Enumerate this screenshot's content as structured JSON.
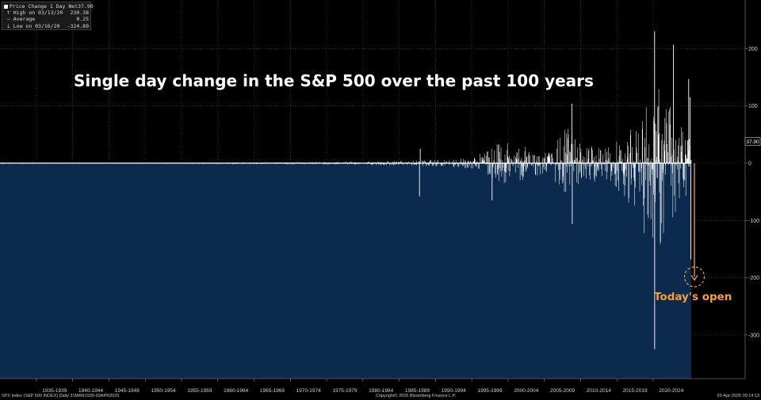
{
  "chart_data": {
    "type": "bar",
    "title": "Single day change in the S&P 500 over the past 100 years",
    "xlabel": "",
    "ylabel": "",
    "x_categories": [
      "1935-1939",
      "1940-1944",
      "1945-1949",
      "1950-1954",
      "1955-1959",
      "1960-1964",
      "1965-1969",
      "1970-1974",
      "1975-1979",
      "1980-1984",
      "1985-1989",
      "1990-1994",
      "1995-1999",
      "2000-2004",
      "2005-2009",
      "2010-2014",
      "2015-2019",
      "2020-2024"
    ],
    "y_ticks": [
      200,
      100,
      0,
      -100,
      -200,
      -300
    ],
    "ylim": [
      -345,
      240
    ],
    "grid": true,
    "series": [
      {
        "name": "Price Change 1 Day Net",
        "envelope": [
          {
            "year": 1930.2,
            "hi": 1.5,
            "lo": -1.5
          },
          {
            "year": 1940,
            "hi": 0.6,
            "lo": -0.6
          },
          {
            "year": 1950,
            "hi": 0.8,
            "lo": -0.8
          },
          {
            "year": 1960,
            "hi": 1.5,
            "lo": -2
          },
          {
            "year": 1970,
            "hi": 2,
            "lo": -2
          },
          {
            "year": 1980,
            "hi": 3,
            "lo": -3
          },
          {
            "year": 1985,
            "hi": 4,
            "lo": -4
          },
          {
            "year": 1990,
            "hi": 6,
            "lo": -6
          },
          {
            "year": 1995,
            "hi": 10,
            "lo": -10
          },
          {
            "year": 1998,
            "hi": 30,
            "lo": -30
          },
          {
            "year": 2000,
            "hi": 45,
            "lo": -40
          },
          {
            "year": 2003,
            "hi": 25,
            "lo": -25
          },
          {
            "year": 2006,
            "hi": 20,
            "lo": -20
          },
          {
            "year": 2008,
            "hi": 70,
            "lo": -70
          },
          {
            "year": 2010,
            "hi": 35,
            "lo": -35
          },
          {
            "year": 2014,
            "hi": 30,
            "lo": -30
          },
          {
            "year": 2018,
            "hi": 70,
            "lo": -90
          },
          {
            "year": 2020,
            "hi": 150,
            "lo": -180
          },
          {
            "year": 2022,
            "hi": 110,
            "lo": -120
          },
          {
            "year": 2024,
            "hi": 80,
            "lo": -80
          },
          {
            "year": 2025.25,
            "hi": 40,
            "lo": -200
          }
        ],
        "spikes": [
          {
            "year": 1987.8,
            "value": -58
          },
          {
            "year": 1987.9,
            "value": 25
          },
          {
            "year": 1997.8,
            "value": -65
          },
          {
            "year": 2008.8,
            "value": 104
          },
          {
            "year": 2008.85,
            "value": -106
          },
          {
            "year": 2020.2,
            "value": 230.38
          },
          {
            "year": 2020.21,
            "value": -324.89
          },
          {
            "year": 2022.8,
            "value": 207
          },
          {
            "year": 2024.9,
            "value": 147
          },
          {
            "year": 2025.1,
            "value": 115
          },
          {
            "year": 2025.2,
            "value": -168
          }
        ]
      }
    ],
    "last_value": 37.9,
    "todays_open": -204,
    "annotation": "Today's open"
  },
  "legend": {
    "series_label": "Price Change 1 Day Net",
    "series_value": "37.90",
    "high_label": "High on 03/13/20",
    "high_value": "230.38",
    "avg_label": "Average",
    "avg_value": "0.25",
    "low_label": "Low on 03/16/20",
    "low_value": "-324.89"
  },
  "last_value_label": "37.90",
  "footer": {
    "left": "SPX Index (S&P 500 INDEX)  Daily 31MAR1930-03APR2025",
    "center": "Copyright© 2025 Bloomberg Finance L.P.",
    "right": "03-Apr-2025 09:14:13"
  },
  "colors": {
    "background": "#000000",
    "area_fill": "#0c2a4d",
    "bars": "#ffffff",
    "grid": "#3a3a3a",
    "annotation": "#f5a030"
  }
}
